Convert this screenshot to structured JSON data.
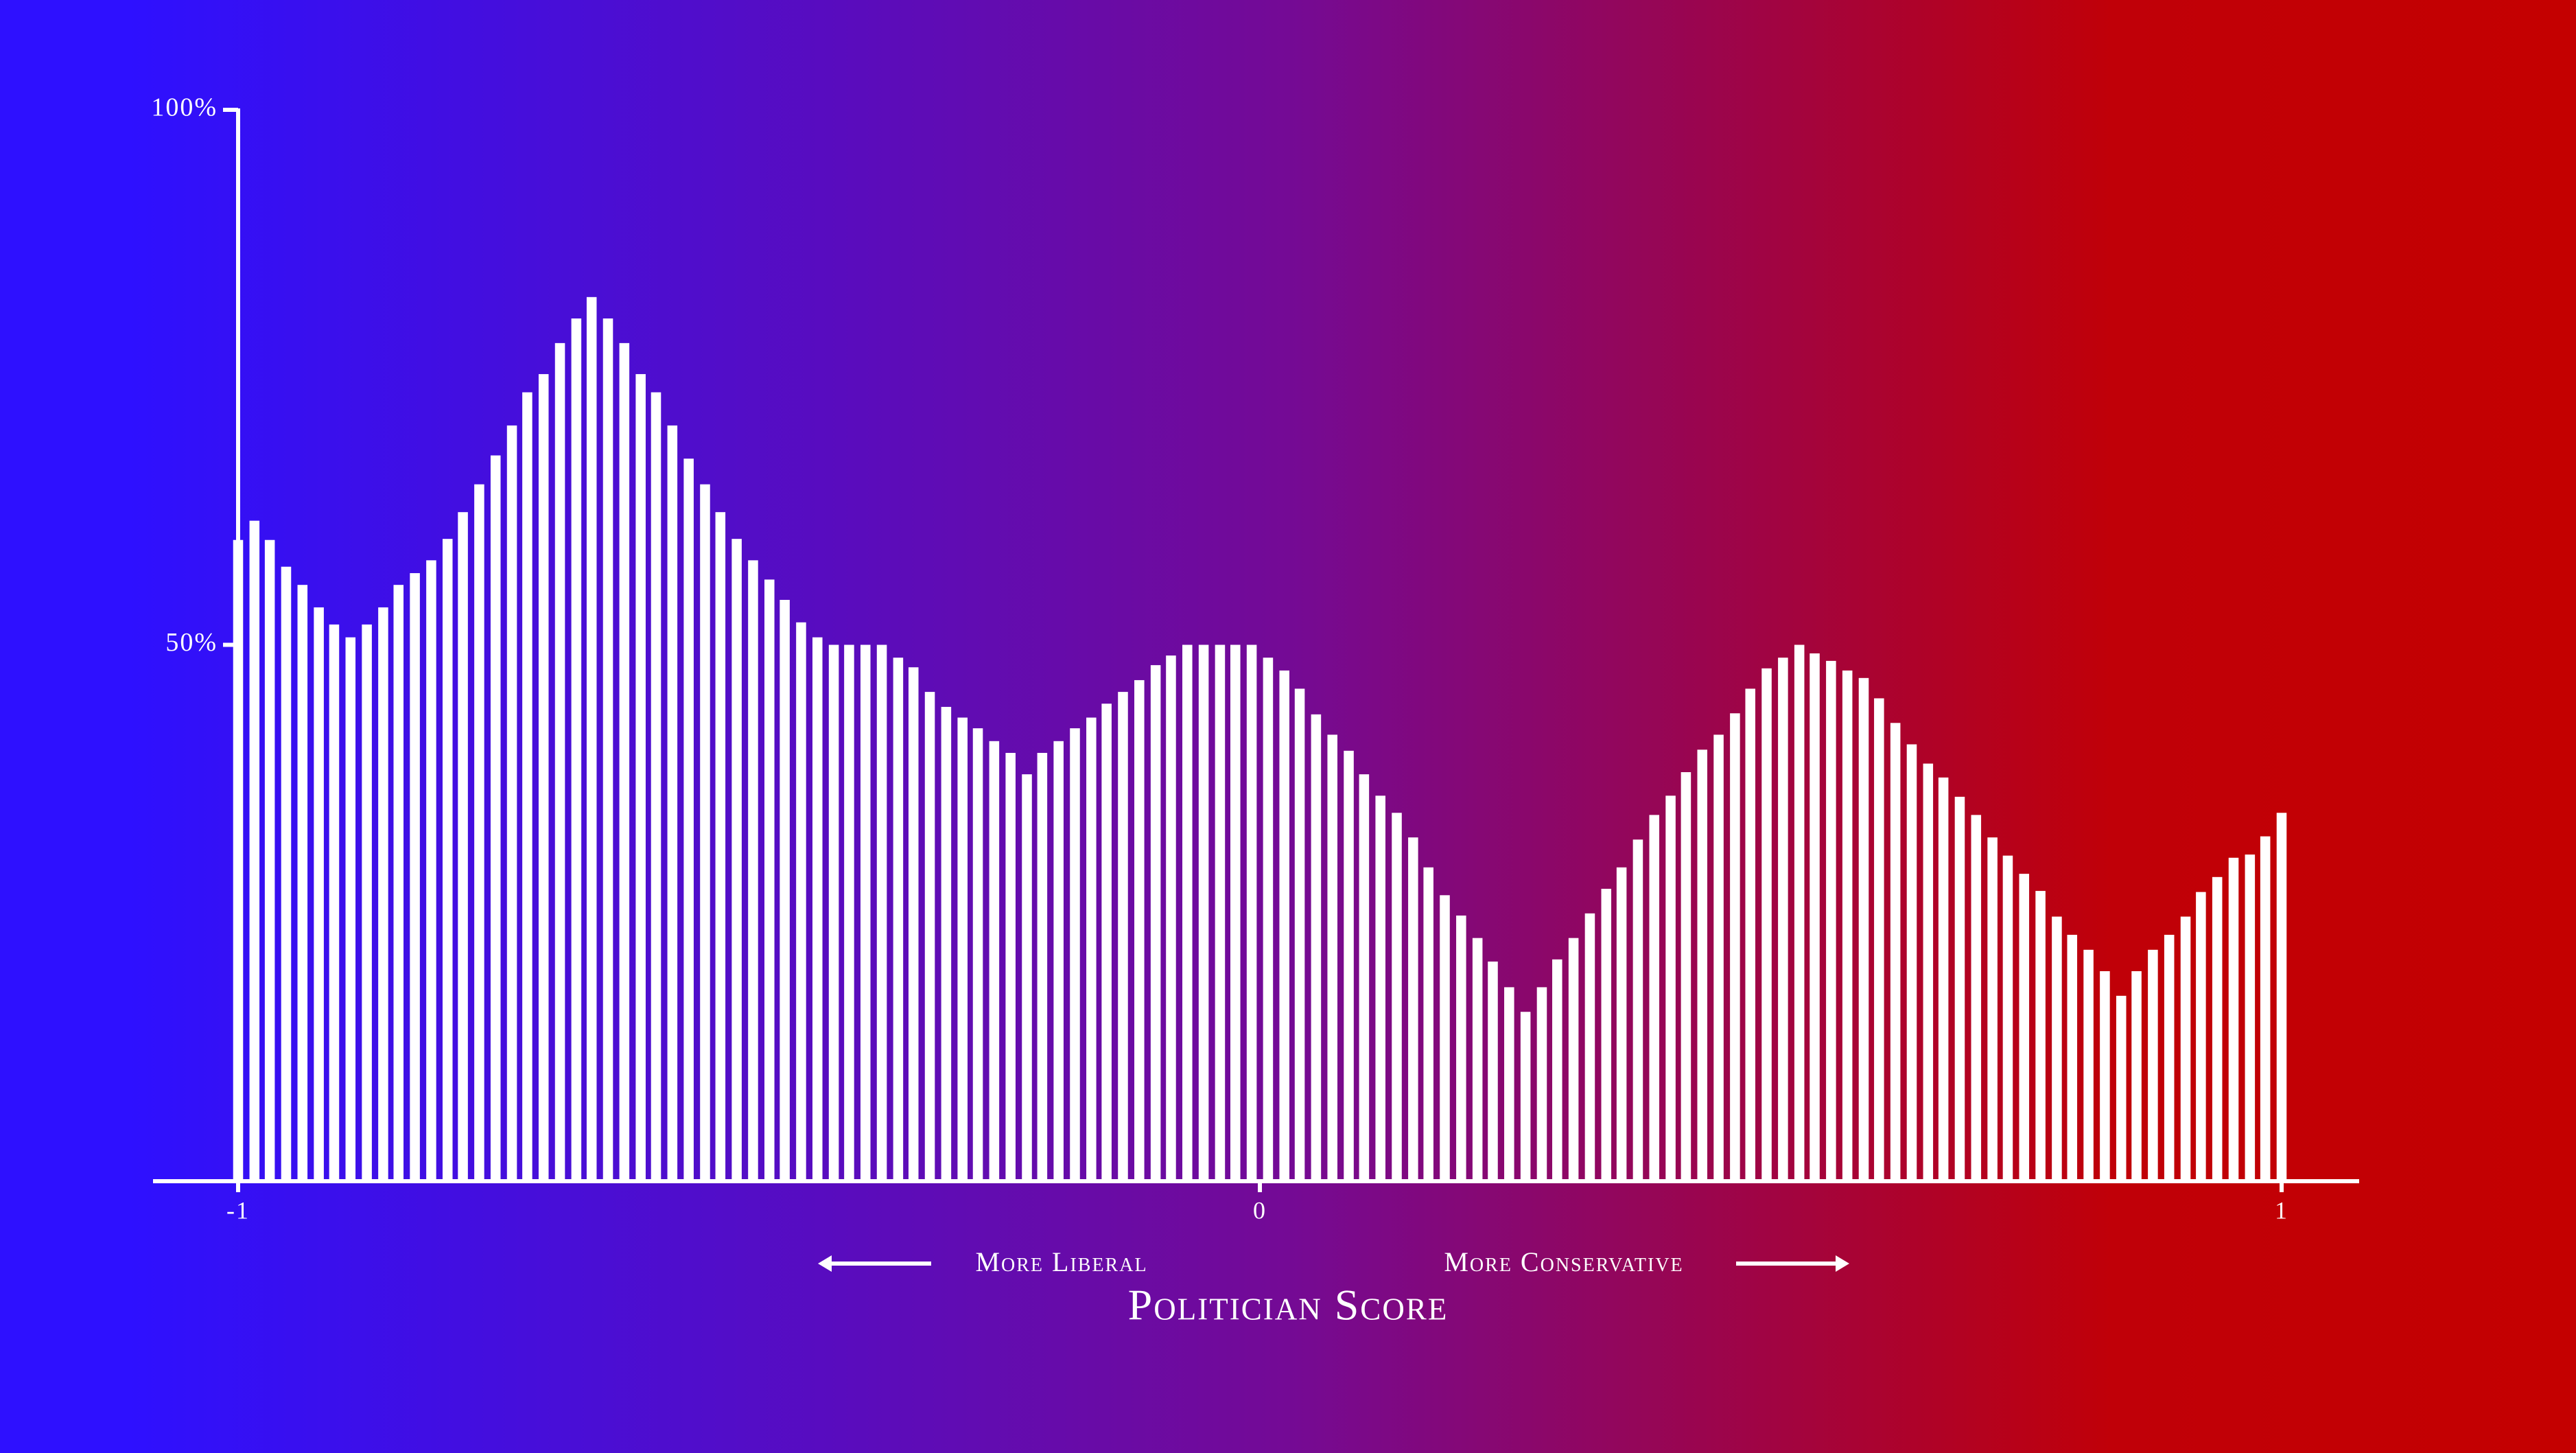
{
  "chart_data": {
    "type": "bar",
    "xlabel": "Politician Score",
    "annotations": [
      "More Liberal",
      "More Conservative"
    ],
    "color": "#ffffff",
    "x": [
      -1,
      -0.984,
      -0.969,
      -0.953,
      -0.937,
      -0.921,
      -0.906,
      -0.89,
      -0.874,
      -0.858,
      -0.843,
      -0.827,
      -0.811,
      -0.795,
      -0.78,
      -0.764,
      -0.748,
      -0.732,
      -0.717,
      -0.701,
      -0.685,
      -0.669,
      -0.654,
      -0.638,
      -0.622,
      -0.606,
      -0.591,
      -0.575,
      -0.559,
      -0.543,
      -0.528,
      -0.512,
      -0.496,
      -0.48,
      -0.465,
      -0.449,
      -0.433,
      -0.417,
      -0.402,
      -0.386,
      -0.37,
      -0.354,
      -0.339,
      -0.323,
      -0.307,
      -0.291,
      -0.276,
      -0.26,
      -0.244,
      -0.228,
      -0.213,
      -0.197,
      -0.181,
      -0.165,
      -0.15,
      -0.134,
      -0.118,
      -0.102,
      -0.087,
      -0.071,
      -0.055,
      -0.039,
      -0.024,
      -0.008,
      0.008,
      0.024,
      0.039,
      0.055,
      0.071,
      0.087,
      0.102,
      0.118,
      0.134,
      0.15,
      0.165,
      0.181,
      0.197,
      0.213,
      0.228,
      0.244,
      0.26,
      0.276,
      0.291,
      0.307,
      0.323,
      0.339,
      0.354,
      0.37,
      0.386,
      0.402,
      0.417,
      0.433,
      0.449,
      0.465,
      0.48,
      0.496,
      0.512,
      0.528,
      0.543,
      0.559,
      0.575,
      0.591,
      0.606,
      0.622,
      0.638,
      0.654,
      0.669,
      0.685,
      0.701,
      0.717,
      0.732,
      0.748,
      0.764,
      0.78,
      0.795,
      0.811,
      0.827,
      0.843,
      0.858,
      0.874,
      0.89,
      0.906,
      0.921,
      0.937,
      0.953,
      0.969,
      0.984,
      1
    ],
    "values": [
      59.8,
      61.6,
      59.8,
      57.3,
      55.6,
      53.5,
      51.9,
      50.7,
      51.9,
      53.5,
      55.6,
      56.7,
      57.9,
      59.9,
      62.4,
      65.0,
      67.7,
      70.5,
      73.6,
      75.3,
      78.2,
      80.5,
      82.5,
      80.5,
      78.2,
      75.3,
      73.6,
      70.5,
      67.4,
      65.0,
      62.4,
      59.9,
      57.9,
      56.1,
      54.2,
      52.1,
      50.7,
      50,
      50,
      50,
      50,
      48.8,
      47.9,
      45.6,
      44.2,
      43.2,
      42.2,
      41.0,
      39.9,
      37.9,
      39.9,
      41.0,
      42.2,
      43.2,
      44.5,
      45.6,
      46.7,
      48.1,
      49.0,
      50,
      50,
      50,
      50,
      50,
      48.8,
      47.6,
      45.9,
      43.5,
      41.6,
      40.1,
      37.9,
      35.9,
      34.3,
      32.0,
      29.2,
      26.6,
      24.7,
      22.6,
      20.4,
      18.0,
      15.7,
      18.0,
      20.6,
      22.6,
      24.9,
      27.2,
      29.2,
      31.8,
      34.1,
      35.9,
      38.1,
      40.2,
      41.6,
      43.6,
      45.9,
      47.8,
      48.8,
      50,
      49.2,
      48.5,
      47.6,
      46.9,
      45.0,
      42.7,
      40.7,
      38.9,
      37.6,
      35.8,
      34.1,
      32.0,
      30.3,
      28.6,
      27.0,
      24.6,
      22.9,
      21.5,
      19.5,
      17.2,
      19.5,
      21.5,
      22.9,
      24.6,
      26.9,
      28.3,
      30.1,
      30.4,
      32.1,
      34.3
    ],
    "xlim": [
      -1,
      1
    ],
    "xticks": [
      -1,
      0,
      1
    ],
    "ylim": [
      0,
      100
    ],
    "yticks": [
      {
        "value": 50,
        "label": "50%"
      },
      {
        "value": 100,
        "label": "100%"
      }
    ]
  }
}
